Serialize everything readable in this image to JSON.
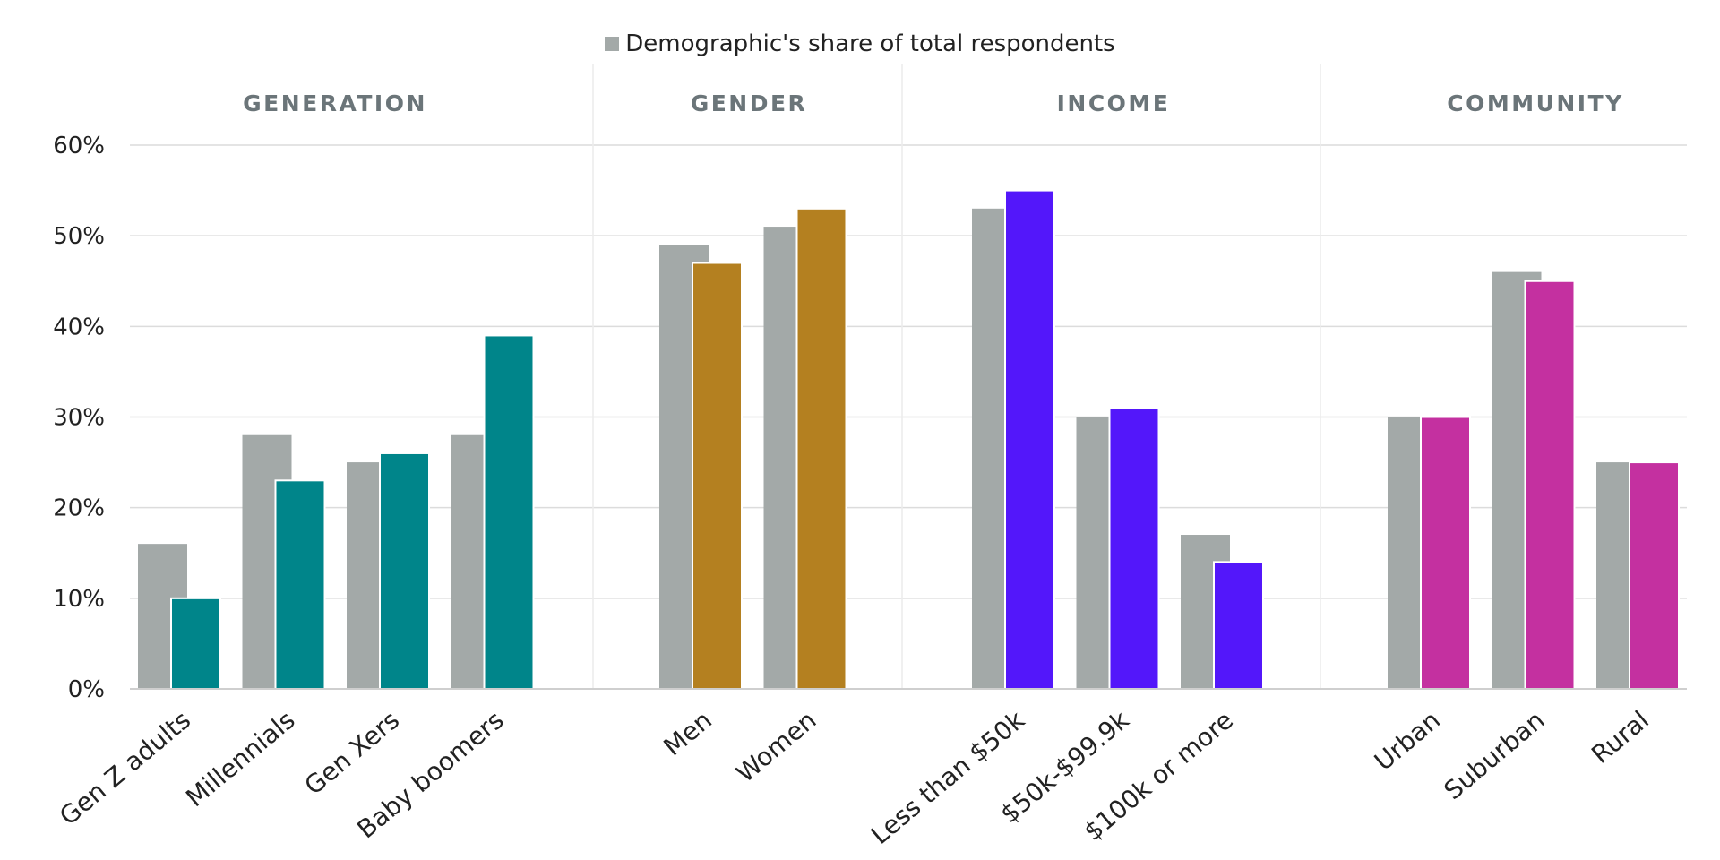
{
  "chart_data": {
    "type": "bar",
    "legend": {
      "placement": "top-center",
      "entries": [
        {
          "label": "Demographic's share of total respondents",
          "color": "#a3a9a8"
        }
      ]
    },
    "ylim": [
      0,
      60
    ],
    "yticks": [
      0,
      10,
      20,
      30,
      40,
      50,
      60
    ],
    "ytick_labels": [
      "0%",
      "10%",
      "20%",
      "30%",
      "40%",
      "50%",
      "60%"
    ],
    "grid": true,
    "share_color": "#a3a9a8",
    "groups": [
      {
        "title": "GENERATION",
        "color": "#00858a",
        "categories": [
          "Gen Z adults",
          "Millennials",
          "Gen Xers",
          "Baby boomers"
        ],
        "share_values": [
          16,
          28,
          25,
          28
        ],
        "values": [
          10,
          23,
          26,
          39
        ]
      },
      {
        "title": "GENDER",
        "color": "#b48020",
        "categories": [
          "Men",
          "Women"
        ],
        "share_values": [
          49,
          51
        ],
        "values": [
          47,
          53
        ]
      },
      {
        "title": "INCOME",
        "color": "#5317fa",
        "categories": [
          "Less than $50k",
          "$50k-$99.9k",
          "$100k or more"
        ],
        "share_values": [
          53,
          30,
          17
        ],
        "values": [
          55,
          31,
          14
        ]
      },
      {
        "title": "COMMUNITY",
        "color": "#c430a0",
        "categories": [
          "Urban",
          "Suburban",
          "Rural"
        ],
        "share_values": [
          30,
          46,
          25
        ],
        "values": [
          30,
          45,
          25
        ]
      }
    ]
  }
}
